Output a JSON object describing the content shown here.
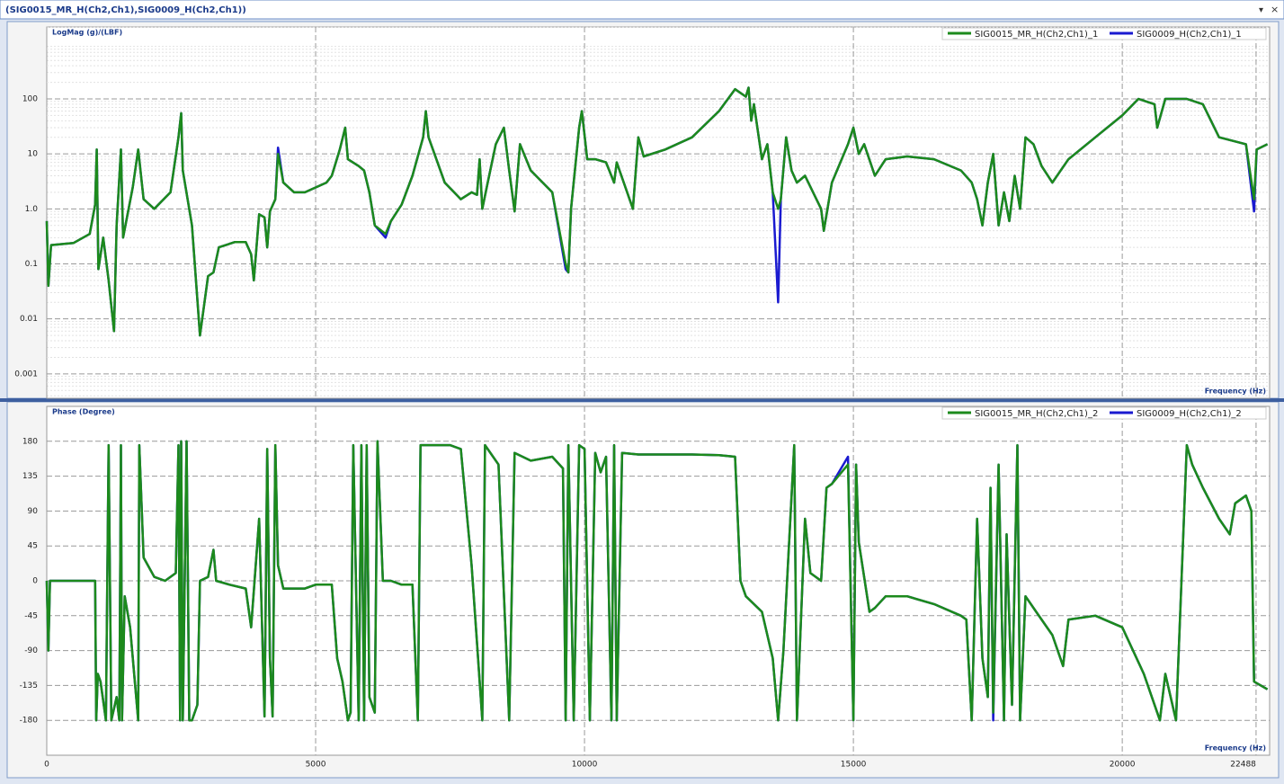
{
  "window_title": "(SIG0015_MR_H(Ch2,Ch1),SIG0009_H(Ch2,Ch1))",
  "chart_data": [
    {
      "type": "line",
      "y_label": "LogMag (g)/(LBF)",
      "x_label": "Frequency (Hz)",
      "log_y": true,
      "grid": true,
      "legend": "upper right",
      "xlim": [
        0,
        22740
      ],
      "ylim": [
        0.00036,
        2030
      ],
      "yticks": [
        100,
        10,
        {
          "value": 1,
          "label": "1.0"
        },
        0.1,
        0.01,
        0.001
      ],
      "x": [
        0,
        30,
        80,
        500,
        800,
        900,
        930,
        960,
        1050,
        1150,
        1250,
        1300,
        1380,
        1420,
        1600,
        1700,
        1800,
        2000,
        2300,
        2450,
        2500,
        2530,
        2700,
        2850,
        3000,
        3100,
        3200,
        3500,
        3700,
        3800,
        3850,
        3950,
        4050,
        4100,
        4150,
        4250,
        4300,
        4400,
        4600,
        4800,
        5200,
        5300,
        5450,
        5550,
        5600,
        5800,
        5900,
        6000,
        6100,
        6300,
        6400,
        6600,
        6800,
        7000,
        7050,
        7100,
        7400,
        7700,
        7900,
        8000,
        8050,
        8100,
        8200,
        8350,
        8500,
        8600,
        8700,
        8800,
        9000,
        9400,
        9650,
        9700,
        9750,
        9900,
        9950,
        10050,
        10200,
        10400,
        10550,
        10600,
        10900,
        11000,
        11100,
        11500,
        12000,
        12500,
        12800,
        13000,
        13050,
        13100,
        13150,
        13300,
        13400,
        13500,
        13600,
        13650,
        13750,
        13850,
        13950,
        14100,
        14400,
        14450,
        14600,
        14900,
        15000,
        15100,
        15200,
        15400,
        15600,
        16000,
        16500,
        17000,
        17200,
        17300,
        17400,
        17500,
        17600,
        17700,
        17800,
        17900,
        18000,
        18100,
        18200,
        18350,
        18500,
        18700,
        19000,
        19500,
        20000,
        20300,
        20600,
        20650,
        20800,
        21200,
        21500,
        21800,
        22300,
        22450,
        22500,
        22700
      ],
      "series": [
        {
          "name": "SIG0015_MR_H(Ch2,Ch1)_1",
          "color": "#1c8a1c",
          "values": [
            0.6,
            0.04,
            0.22,
            0.24,
            0.35,
            1.2,
            12,
            0.08,
            0.3,
            0.05,
            0.006,
            0.5,
            12,
            0.3,
            2.5,
            12,
            1.5,
            1,
            2,
            20,
            55,
            5,
            0.5,
            0.005,
            0.06,
            0.07,
            0.2,
            0.25,
            0.25,
            0.15,
            0.05,
            0.8,
            0.7,
            0.2,
            0.9,
            1.5,
            10,
            3,
            2,
            2,
            3,
            4,
            12,
            30,
            8,
            6,
            5,
            2,
            0.5,
            0.35,
            0.6,
            1.2,
            4,
            20,
            60,
            20,
            3,
            1.5,
            2,
            1.8,
            8,
            1,
            3,
            15,
            30,
            5,
            0.9,
            15,
            5,
            2,
            0.1,
            0.07,
            1,
            30,
            60,
            8,
            8,
            7,
            3,
            7,
            1,
            20,
            9,
            12,
            20,
            60,
            150,
            110,
            160,
            40,
            80,
            8,
            15,
            2,
            1,
            1.5,
            20,
            5,
            3,
            4,
            1,
            0.4,
            3,
            15,
            30,
            10,
            15,
            4,
            8,
            9,
            8,
            5,
            3,
            1.5,
            0.5,
            3,
            10,
            0.5,
            2,
            0.6,
            4,
            1,
            20,
            15,
            6,
            3,
            8,
            20,
            50,
            100,
            80,
            30,
            100,
            100,
            80,
            20,
            15,
            1.5,
            12,
            15
          ]
        },
        {
          "name": "SIG0009_H(Ch2,Ch1)_1",
          "color": "#1a1ad0",
          "values": [
            0.6,
            0.04,
            0.22,
            0.24,
            0.35,
            1.2,
            12,
            0.08,
            0.3,
            0.05,
            0.006,
            0.5,
            12,
            0.3,
            2.5,
            12,
            1.5,
            1,
            2,
            20,
            55,
            5,
            0.5,
            0.005,
            0.06,
            0.07,
            0.2,
            0.25,
            0.25,
            0.15,
            0.05,
            0.8,
            0.7,
            0.2,
            0.9,
            1.5,
            13,
            3,
            2,
            2,
            3,
            4,
            12,
            30,
            8,
            6,
            5,
            2,
            0.5,
            0.3,
            0.6,
            1.2,
            4,
            20,
            60,
            20,
            3,
            1.5,
            2,
            1.8,
            8,
            1,
            3,
            15,
            30,
            5,
            0.9,
            15,
            5,
            2,
            0.08,
            0.07,
            1,
            30,
            60,
            8,
            8,
            7,
            3,
            7,
            1,
            20,
            9,
            12,
            20,
            60,
            150,
            110,
            160,
            40,
            80,
            8,
            15,
            2,
            0.02,
            1.5,
            20,
            5,
            3,
            4,
            1,
            0.4,
            3,
            15,
            30,
            10,
            15,
            4,
            8,
            9,
            8,
            5,
            3,
            1.5,
            0.5,
            3,
            10,
            0.5,
            2,
            0.6,
            4,
            1,
            20,
            15,
            6,
            3,
            8,
            20,
            50,
            100,
            80,
            30,
            100,
            100,
            80,
            20,
            15,
            0.9,
            12,
            15
          ]
        }
      ]
    },
    {
      "type": "line",
      "y_label": "Phase (Degree)",
      "x_label": "Frequency (Hz)",
      "grid": true,
      "legend": "upper right",
      "xlim": [
        0,
        22740
      ],
      "ylim": [
        -225,
        225
      ],
      "xticks": [
        0,
        5000,
        10000,
        15000,
        20000,
        22488
      ],
      "yticks": [
        180,
        135,
        90,
        45,
        0,
        -45,
        -90,
        -135,
        -180
      ],
      "x": [
        0,
        30,
        60,
        900,
        920,
        950,
        1000,
        1100,
        1150,
        1200,
        1300,
        1350,
        1380,
        1400,
        1450,
        1550,
        1700,
        1720,
        1800,
        2000,
        2200,
        2400,
        2450,
        2480,
        2500,
        2530,
        2600,
        2650,
        2700,
        2800,
        2850,
        3000,
        3100,
        3150,
        3400,
        3700,
        3800,
        3950,
        4050,
        4100,
        4150,
        4200,
        4250,
        4300,
        4400,
        4600,
        4800,
        5000,
        5300,
        5400,
        5500,
        5600,
        5650,
        5700,
        5800,
        5850,
        5900,
        5950,
        6000,
        6100,
        6150,
        6250,
        6400,
        6600,
        6800,
        6900,
        6950,
        7200,
        7500,
        7700,
        7900,
        8000,
        8100,
        8150,
        8400,
        8600,
        8700,
        9000,
        9400,
        9600,
        9650,
        9700,
        9800,
        9900,
        10000,
        10100,
        10200,
        10300,
        10400,
        10500,
        10550,
        10600,
        10700,
        11000,
        11500,
        12000,
        12500,
        12800,
        12900,
        13000,
        13300,
        13500,
        13600,
        13700,
        13900,
        13950,
        14100,
        14200,
        14400,
        14500,
        14600,
        14900,
        15000,
        15050,
        15100,
        15300,
        15400,
        15600,
        16000,
        16500,
        17000,
        17100,
        17200,
        17300,
        17400,
        17500,
        17550,
        17600,
        17700,
        17800,
        17850,
        17950,
        18050,
        18100,
        18200,
        18400,
        18700,
        18900,
        19000,
        19500,
        20000,
        20400,
        20700,
        20800,
        21000,
        21200,
        21300,
        21500,
        21800,
        22000,
        22100,
        22300,
        22400,
        22450,
        22700
      ],
      "series": [
        {
          "name": "SIG0015_MR_H(Ch2,Ch1)_2",
          "color": "#1c8a1c",
          "values": [
            0,
            -90,
            0,
            0,
            -180,
            -120,
            -130,
            -180,
            175,
            -180,
            -150,
            -180,
            175,
            -180,
            -20,
            -60,
            -180,
            175,
            30,
            5,
            0,
            10,
            175,
            -180,
            180,
            -180,
            180,
            -180,
            -180,
            -160,
            0,
            5,
            40,
            0,
            -5,
            -10,
            -60,
            80,
            -175,
            170,
            -100,
            -175,
            175,
            20,
            -10,
            -10,
            -10,
            -5,
            -5,
            -100,
            -130,
            -180,
            -170,
            175,
            -180,
            175,
            -180,
            175,
            -150,
            -170,
            180,
            0,
            0,
            -5,
            -5,
            -180,
            175,
            175,
            175,
            170,
            20,
            -80,
            -180,
            175,
            150,
            -180,
            165,
            155,
            160,
            145,
            -180,
            175,
            -180,
            175,
            170,
            -180,
            165,
            140,
            160,
            -180,
            175,
            -180,
            165,
            163,
            163,
            163,
            162,
            160,
            0,
            -20,
            -40,
            -100,
            -180,
            -90,
            175,
            -180,
            80,
            10,
            0,
            120,
            125,
            150,
            -180,
            150,
            50,
            -40,
            -35,
            -20,
            -20,
            -30,
            -45,
            -50,
            -180,
            80,
            -100,
            -150,
            120,
            -170,
            150,
            -180,
            60,
            -160,
            175,
            -180,
            -20,
            -40,
            -70,
            -110,
            -50,
            -45,
            -60,
            -120,
            -180,
            -120,
            -180,
            175,
            150,
            120,
            80,
            60,
            100,
            110,
            90,
            -130,
            -140
          ]
        },
        {
          "name": "SIG0009_H(Ch2,Ch1)_2",
          "color": "#1a1ad0",
          "values": [
            0,
            -90,
            0,
            0,
            -180,
            -120,
            -130,
            -180,
            175,
            -180,
            -150,
            -180,
            175,
            -180,
            -20,
            -60,
            -180,
            175,
            30,
            5,
            0,
            10,
            175,
            -180,
            180,
            -180,
            180,
            -180,
            -180,
            -160,
            0,
            5,
            40,
            0,
            -5,
            -10,
            -60,
            80,
            -175,
            170,
            -100,
            -175,
            175,
            20,
            -10,
            -10,
            -10,
            -5,
            -5,
            -100,
            -130,
            -180,
            -170,
            175,
            -180,
            175,
            -180,
            175,
            -150,
            -170,
            180,
            0,
            0,
            -5,
            -5,
            -180,
            175,
            175,
            175,
            170,
            20,
            -80,
            -180,
            175,
            150,
            -180,
            165,
            155,
            160,
            145,
            -180,
            175,
            -180,
            175,
            170,
            -180,
            165,
            140,
            160,
            -180,
            175,
            -180,
            165,
            163,
            163,
            163,
            162,
            160,
            0,
            -20,
            -40,
            -100,
            -180,
            -90,
            175,
            -180,
            80,
            10,
            0,
            120,
            125,
            160,
            -180,
            150,
            50,
            -40,
            -35,
            -20,
            -20,
            -30,
            -45,
            -50,
            -180,
            80,
            -100,
            -150,
            120,
            -180,
            150,
            -180,
            60,
            -160,
            175,
            -180,
            -20,
            -40,
            -70,
            -110,
            -50,
            -45,
            -60,
            -120,
            -180,
            -120,
            -180,
            175,
            150,
            120,
            80,
            60,
            100,
            110,
            90,
            -130,
            -140
          ]
        }
      ]
    }
  ]
}
